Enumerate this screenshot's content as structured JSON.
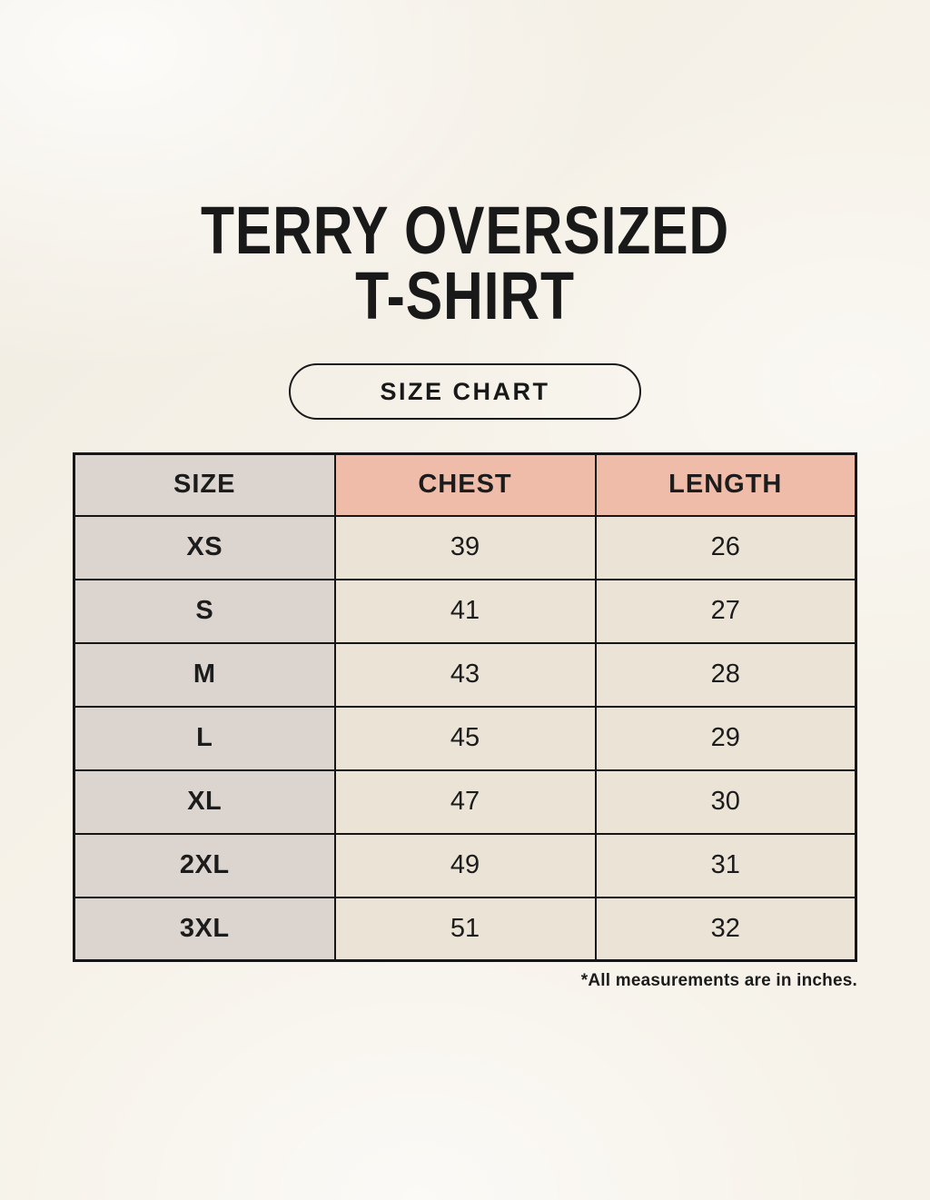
{
  "header": {
    "title_line1": "TERRY OVERSIZED",
    "title_line2": "T-SHIRT",
    "badge_label": "SIZE CHART"
  },
  "chart_data": {
    "type": "table",
    "title": "TERRY OVERSIZED T-SHIRT",
    "columns": [
      "SIZE",
      "CHEST",
      "LENGTH"
    ],
    "rows": [
      {
        "size": "XS",
        "chest": "39",
        "length": "26"
      },
      {
        "size": "S",
        "chest": "41",
        "length": "27"
      },
      {
        "size": "M",
        "chest": "43",
        "length": "28"
      },
      {
        "size": "L",
        "chest": "45",
        "length": "29"
      },
      {
        "size": "XL",
        "chest": "47",
        "length": "30"
      },
      {
        "size": "2XL",
        "chest": "49",
        "length": "31"
      },
      {
        "size": "3XL",
        "chest": "51",
        "length": "32"
      }
    ],
    "units": "inches"
  },
  "footnote": "*All measurements are in inches.",
  "colors": {
    "background": "#f6f2e9",
    "size_column_bg": "#dcd5cf",
    "measure_header_bg": "#efbcaa",
    "value_cell_bg": "#eae3d6",
    "border": "#161616",
    "text": "#1c1c1c"
  }
}
